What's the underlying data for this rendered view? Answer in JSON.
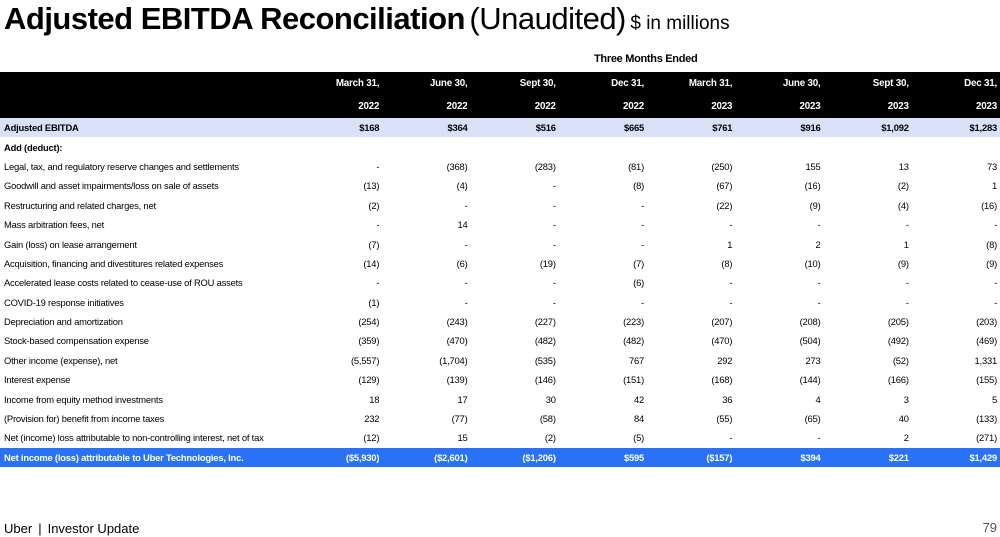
{
  "title": {
    "main": "Adjusted EBITDA Reconciliation",
    "qualifier": "(Unaudited)",
    "unit": "$ in millions"
  },
  "period_header": "Three Months Ended",
  "columns": [
    {
      "date": "March 31,",
      "year": "2022"
    },
    {
      "date": "June 30,",
      "year": "2022"
    },
    {
      "date": "Sept 30,",
      "year": "2022"
    },
    {
      "date": "Dec 31,",
      "year": "2022"
    },
    {
      "date": "March 31,",
      "year": "2023"
    },
    {
      "date": "June 30,",
      "year": "2023"
    },
    {
      "date": "Sept 30,",
      "year": "2023"
    },
    {
      "date": "Dec 31,",
      "year": "2023"
    }
  ],
  "rows": [
    {
      "label": "Adjusted EBITDA",
      "values": [
        "$168",
        "$364",
        "$516",
        "$665",
        "$761",
        "$916",
        "$1,092",
        "$1,283"
      ]
    },
    {
      "label": "Add (deduct):",
      "values": []
    },
    {
      "label": "Legal, tax, and regulatory reserve changes and settlements",
      "values": [
        "-",
        "(368)",
        "(283)",
        "(81)",
        "(250)",
        "155",
        "13",
        "73"
      ]
    },
    {
      "label": "Goodwill and asset impairments/loss on sale of assets",
      "values": [
        "(13)",
        "(4)",
        "-",
        "(8)",
        "(67)",
        "(16)",
        "(2)",
        "1"
      ]
    },
    {
      "label": "Restructuring and related charges, net",
      "values": [
        "(2)",
        "-",
        "-",
        "-",
        "(22)",
        "(9)",
        "(4)",
        "(16)"
      ]
    },
    {
      "label": "Mass arbitration fees, net",
      "values": [
        "-",
        "14",
        "-",
        "-",
        "-",
        "-",
        "-",
        "-"
      ]
    },
    {
      "label": "Gain (loss) on lease arrangement",
      "values": [
        "(7)",
        "-",
        "-",
        "-",
        "1",
        "2",
        "1",
        "(8)"
      ]
    },
    {
      "label": "Acquisition, financing and divestitures related expenses",
      "values": [
        "(14)",
        "(6)",
        "(19)",
        "(7)",
        "(8)",
        "(10)",
        "(9)",
        "(9)"
      ]
    },
    {
      "label": "Accelerated lease costs related to cease-use of ROU assets",
      "values": [
        "-",
        "-",
        "-",
        "(6)",
        "-",
        "-",
        "-",
        "-"
      ]
    },
    {
      "label": "COVID-19 response initiatives",
      "values": [
        "(1)",
        "-",
        "-",
        "-",
        "-",
        "-",
        "-",
        "-"
      ]
    },
    {
      "label": "Depreciation and amortization",
      "values": [
        "(254)",
        "(243)",
        "(227)",
        "(223)",
        "(207)",
        "(208)",
        "(205)",
        "(203)"
      ]
    },
    {
      "label": "Stock-based compensation expense",
      "values": [
        "(359)",
        "(470)",
        "(482)",
        "(482)",
        "(470)",
        "(504)",
        "(492)",
        "(469)"
      ]
    },
    {
      "label": "Other income (expense), net",
      "values": [
        "(5,557)",
        "(1,704)",
        "(535)",
        "767",
        "292",
        "273",
        "(52)",
        "1,331"
      ]
    },
    {
      "label": "Interest expense",
      "values": [
        "(129)",
        "(139)",
        "(146)",
        "(151)",
        "(168)",
        "(144)",
        "(166)",
        "(155)"
      ]
    },
    {
      "label": "Income  from equity method investments",
      "values": [
        "18",
        "17",
        "30",
        "42",
        "36",
        "4",
        "3",
        "5"
      ]
    },
    {
      "label": "(Provision for) benefit from income taxes",
      "values": [
        "232",
        "(77)",
        "(58)",
        "84",
        "(55)",
        "(65)",
        "40",
        "(133)"
      ]
    },
    {
      "label": "Net (income) loss attributable to non-controlling interest, net of tax",
      "values": [
        "(12)",
        "15",
        "(2)",
        "(5)",
        "-",
        "-",
        "2",
        "(271)"
      ]
    },
    {
      "label": "Net income (loss) attributable to Uber Technologies, Inc.",
      "values": [
        "($5,930)",
        "($2,601)",
        "($1,206)",
        "$595",
        "($157)",
        "$394",
        "$221",
        "$1,429"
      ]
    }
  ],
  "footer": {
    "brand": "Uber",
    "separator": "|",
    "section": "Investor Update",
    "page_number": "79"
  },
  "colors": {
    "header_bg": "#000000",
    "adjusted_row_bg": "#d8e1f7",
    "net_row_bg": "#2a72f5"
  }
}
